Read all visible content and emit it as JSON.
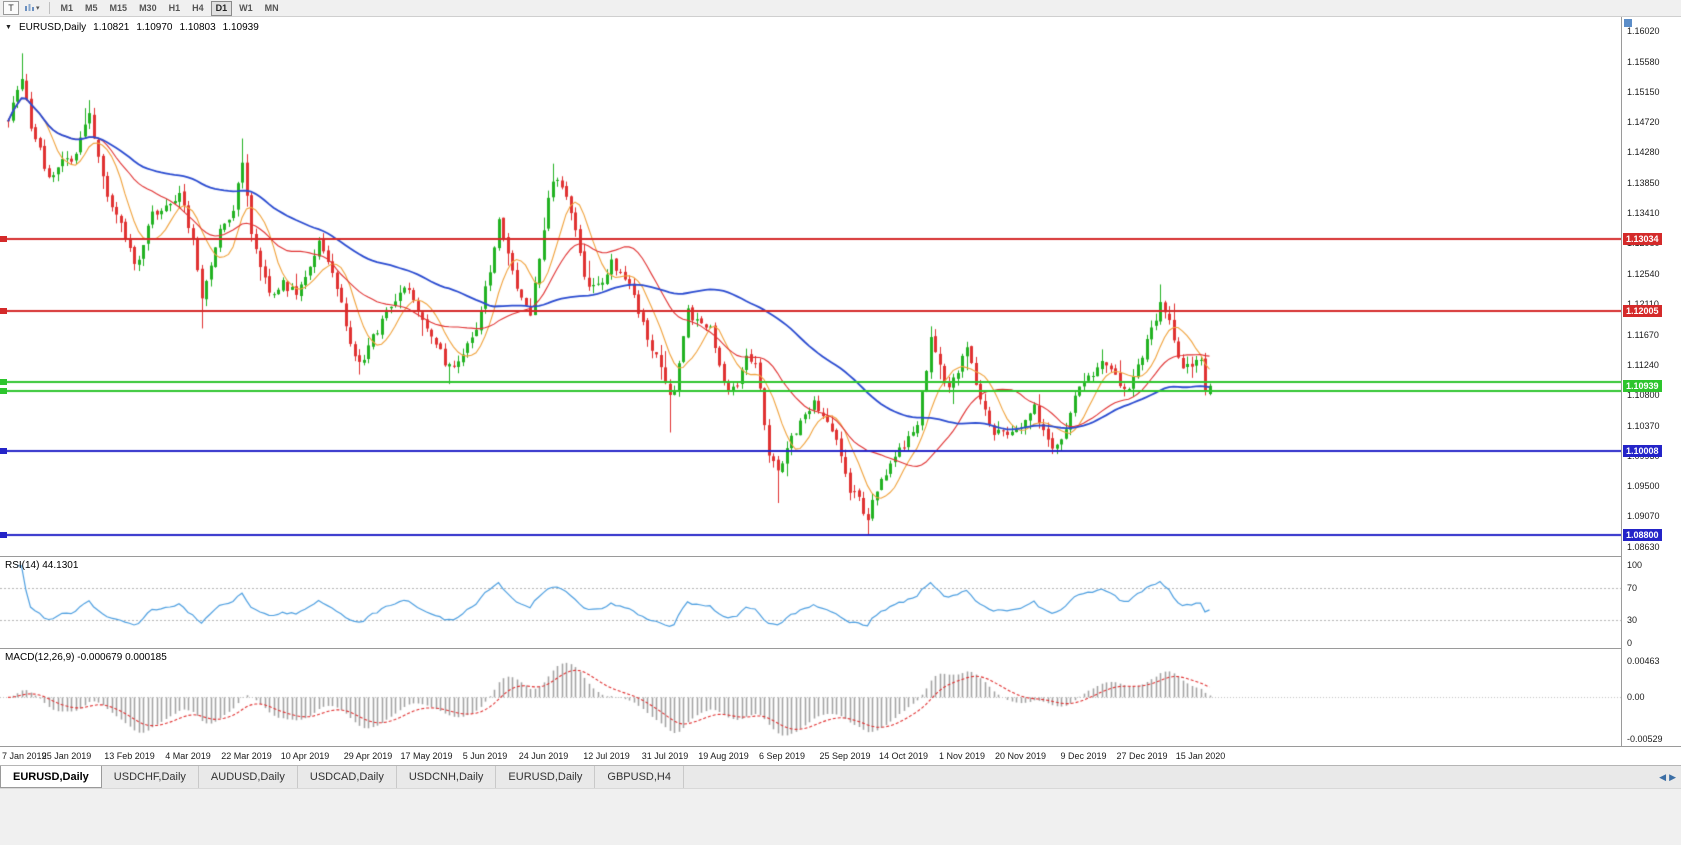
{
  "icons": {
    "oct_toggle": "▼",
    "dropdown_caret": "▾",
    "tab_scroll_left": "◀",
    "tab_scroll_right": "▶"
  },
  "toolbar": {
    "template_button_label": "T",
    "timeframes": [
      "M1",
      "M5",
      "M15",
      "M30",
      "H1",
      "H4",
      "D1",
      "W1",
      "MN"
    ],
    "active_timeframe": "D1"
  },
  "chart": {
    "symbol_header": "EURUSD,Daily",
    "open": "1.10821",
    "high": "1.10970",
    "low": "1.10803",
    "close": "1.10939"
  },
  "chart_data": {
    "type": "candlestick",
    "symbol": "EURUSD",
    "period": "Daily",
    "bars": 268,
    "ylim": [
      1.08501,
      1.16221
    ],
    "y_tick_labels": [
      "1.16020",
      "1.15580",
      "1.15150",
      "1.14720",
      "1.14280",
      "1.13850",
      "1.13410",
      "1.12980",
      "1.12540",
      "1.12110",
      "1.11670",
      "1.11240",
      "1.10800",
      "1.10370",
      "1.09930",
      "1.09500",
      "1.09070",
      "1.08630"
    ],
    "x_tick_labels": [
      "7 Jan 2019",
      "25 Jan 2019",
      "13 Feb 2019",
      "4 Mar 2019",
      "22 Mar 2019",
      "10 Apr 2019",
      "29 Apr 2019",
      "17 May 2019",
      "5 Jun 2019",
      "24 Jun 2019",
      "12 Jul 2019",
      "31 Jul 2019",
      "19 Aug 2019",
      "6 Sep 2019",
      "25 Sep 2019",
      "14 Oct 2019",
      "1 Nov 2019",
      "20 Nov 2019",
      "9 Dec 2019",
      "27 Dec 2019",
      "15 Jan 2020"
    ],
    "close_keypoints": [
      [
        0,
        1.1475
      ],
      [
        2,
        1.152
      ],
      [
        3,
        1.1535
      ],
      [
        5,
        1.1468
      ],
      [
        9,
        1.1392
      ],
      [
        12,
        1.142
      ],
      [
        14,
        1.1408
      ],
      [
        18,
        1.1485
      ],
      [
        22,
        1.1362
      ],
      [
        25,
        1.133
      ],
      [
        28,
        1.1262
      ],
      [
        32,
        1.1338
      ],
      [
        36,
        1.1352
      ],
      [
        38,
        1.1368
      ],
      [
        41,
        1.1302
      ],
      [
        43,
        1.1215
      ],
      [
        47,
        1.1325
      ],
      [
        50,
        1.134
      ],
      [
        52,
        1.1415
      ],
      [
        54,
        1.1305
      ],
      [
        58,
        1.1224
      ],
      [
        61,
        1.124
      ],
      [
        64,
        1.1228
      ],
      [
        69,
        1.1298
      ],
      [
        73,
        1.1235
      ],
      [
        76,
        1.1155
      ],
      [
        78,
        1.1122
      ],
      [
        81,
        1.1165
      ],
      [
        84,
        1.1198
      ],
      [
        88,
        1.123
      ],
      [
        90,
        1.122
      ],
      [
        94,
        1.1162
      ],
      [
        98,
        1.1118
      ],
      [
        101,
        1.114
      ],
      [
        104,
        1.117
      ],
      [
        107,
        1.1262
      ],
      [
        109,
        1.1328
      ],
      [
        112,
        1.1262
      ],
      [
        114,
        1.1215
      ],
      [
        116,
        1.1198
      ],
      [
        119,
        1.1322
      ],
      [
        121,
        1.1392
      ],
      [
        124,
        1.1368
      ],
      [
        127,
        1.1282
      ],
      [
        129,
        1.123
      ],
      [
        132,
        1.1248
      ],
      [
        134,
        1.1268
      ],
      [
        137,
        1.1245
      ],
      [
        139,
        1.1222
      ],
      [
        141,
        1.118
      ],
      [
        143,
        1.115
      ],
      [
        145,
        1.1125
      ],
      [
        147,
        1.108
      ],
      [
        148,
        1.1088
      ],
      [
        150,
        1.1162
      ],
      [
        151,
        1.1198
      ],
      [
        154,
        1.1182
      ],
      [
        156,
        1.1172
      ],
      [
        158,
        1.1122
      ],
      [
        160,
        1.1085
      ],
      [
        162,
        1.1098
      ],
      [
        164,
        1.1142
      ],
      [
        166,
        1.1128
      ],
      [
        169,
        1.0995
      ],
      [
        171,
        1.0968
      ],
      [
        173,
        1.1005
      ],
      [
        175,
        1.1032
      ],
      [
        177,
        1.1058
      ],
      [
        179,
        1.1068
      ],
      [
        182,
        1.1042
      ],
      [
        184,
        1.1015
      ],
      [
        187,
        1.0945
      ],
      [
        189,
        1.0928
      ],
      [
        191,
        1.0905
      ],
      [
        194,
        1.0962
      ],
      [
        196,
        1.0982
      ],
      [
        198,
        1.1002
      ],
      [
        200,
        1.1018
      ],
      [
        202,
        1.1042
      ],
      [
        205,
        1.1162
      ],
      [
        207,
        1.1122
      ],
      [
        209,
        1.1085
      ],
      [
        211,
        1.1118
      ],
      [
        213,
        1.115
      ],
      [
        216,
        1.1075
      ],
      [
        219,
        1.1025
      ],
      [
        221,
        1.1032
      ],
      [
        223,
        1.1022
      ],
      [
        226,
        1.1045
      ],
      [
        228,
        1.1062
      ],
      [
        230,
        1.1028
      ],
      [
        232,
        1.1002
      ],
      [
        234,
        1.1018
      ],
      [
        237,
        1.1078
      ],
      [
        240,
        1.1102
      ],
      [
        243,
        1.1132
      ],
      [
        246,
        1.1108
      ],
      [
        249,
        1.1085
      ],
      [
        251,
        1.1122
      ],
      [
        254,
        1.1172
      ],
      [
        256,
        1.1212
      ],
      [
        258,
        1.1185
      ],
      [
        259,
        1.1162
      ],
      [
        261,
        1.1115
      ],
      [
        263,
        1.1122
      ],
      [
        264,
        1.1128
      ],
      [
        265,
        1.1135
      ],
      [
        266,
        1.1086
      ],
      [
        267,
        1.10939
      ]
    ],
    "wick_overrides": [
      {
        "bar": 3,
        "high": 1.157
      },
      {
        "bar": 43,
        "low": 1.1176
      },
      {
        "bar": 52,
        "high": 1.1448
      },
      {
        "bar": 78,
        "low": 1.111
      },
      {
        "bar": 121,
        "high": 1.1412
      },
      {
        "bar": 147,
        "low": 1.1027
      },
      {
        "bar": 171,
        "low": 1.0926
      },
      {
        "bar": 191,
        "low": 1.0879
      },
      {
        "bar": 205,
        "high": 1.1179
      },
      {
        "bar": 256,
        "high": 1.1239
      }
    ],
    "last_bar": {
      "open": 1.10821,
      "high": 1.1097,
      "low": 1.10803,
      "close": 1.10939
    },
    "horizontal_lines": [
      {
        "price": 1.13034,
        "label": "1.13034",
        "color": "#d42a2a",
        "width": 2
      },
      {
        "price": 1.12005,
        "label": "1.12005",
        "color": "#d42a2a",
        "width": 2
      },
      {
        "price": 1.1099,
        "label": "",
        "color": "#2dc52d",
        "width": 2
      },
      {
        "price": 1.1087,
        "label": "",
        "color": "#2dc52d",
        "width": 2
      },
      {
        "price": 1.10008,
        "label": "1.10008",
        "color": "#2424c8",
        "width": 2
      },
      {
        "price": 1.088,
        "label": "1.08800",
        "color": "#2424c8",
        "width": 2
      }
    ],
    "current_price_label": {
      "price": 1.10939,
      "label": "1.10939",
      "color": "#2dc52d"
    },
    "moving_averages": [
      {
        "type": "SMA",
        "period": 8,
        "color": "#f0a23c"
      },
      {
        "type": "SMA",
        "period": 21,
        "color": "#e03232"
      },
      {
        "type": "SMA",
        "period": 55,
        "color": "#2a4bd0"
      }
    ],
    "colors": {
      "up": "#22b222",
      "down": "#e03232",
      "background": "#ffffff"
    },
    "indicators": [
      {
        "name": "RSI",
        "label": "RSI(14) 44.1301",
        "period": 14,
        "current": 44.1301,
        "levels": [
          100,
          70,
          30,
          0
        ],
        "color": "#4e9fe0"
      },
      {
        "name": "MACD",
        "label": "MACD(12,26,9) -0.000679 0.000185",
        "fast": 12,
        "slow": 26,
        "signal": 9,
        "current_main": -0.000679,
        "current_signal": 0.000185,
        "axis_labels": [
          "0.00463",
          "0.00",
          "-0.00529"
        ],
        "axis_values": [
          0.00463,
          0,
          -0.00529
        ],
        "hist_color": "#a3a3a3",
        "signal_color": "#e03232"
      }
    ]
  },
  "tabs": {
    "items": [
      {
        "label": "EURUSD,Daily",
        "active": true
      },
      {
        "label": "USDCHF,Daily",
        "active": false
      },
      {
        "label": "AUDUSD,Daily",
        "active": false
      },
      {
        "label": "USDCAD,Daily",
        "active": false
      },
      {
        "label": "USDCNH,Daily",
        "active": false
      },
      {
        "label": "EURUSD,Daily",
        "active": false
      },
      {
        "label": "GBPUSD,H4",
        "active": false
      }
    ]
  }
}
